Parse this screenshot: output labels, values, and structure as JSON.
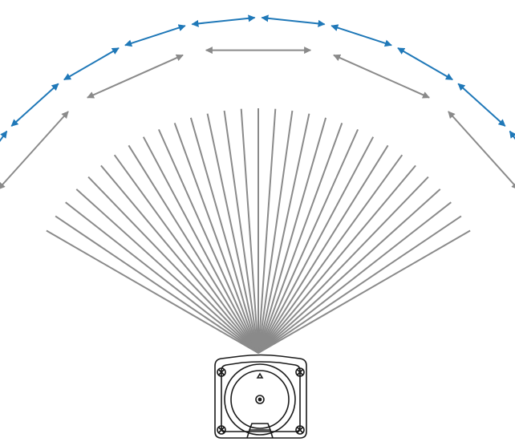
{
  "diagram": {
    "type": "sensor-scan-field-illustration",
    "beam_count": 31,
    "sections": 5,
    "subdivisions_per_section": 2,
    "colors": {
      "beam": "#8a8a8a",
      "section_arrow": "#8a8a8a",
      "subdivision_arrow": "#1f78b8",
      "device_outline": "#1a1a1a",
      "background": "#ffffff"
    },
    "icons": {
      "device": "sensor-device-icon"
    }
  }
}
